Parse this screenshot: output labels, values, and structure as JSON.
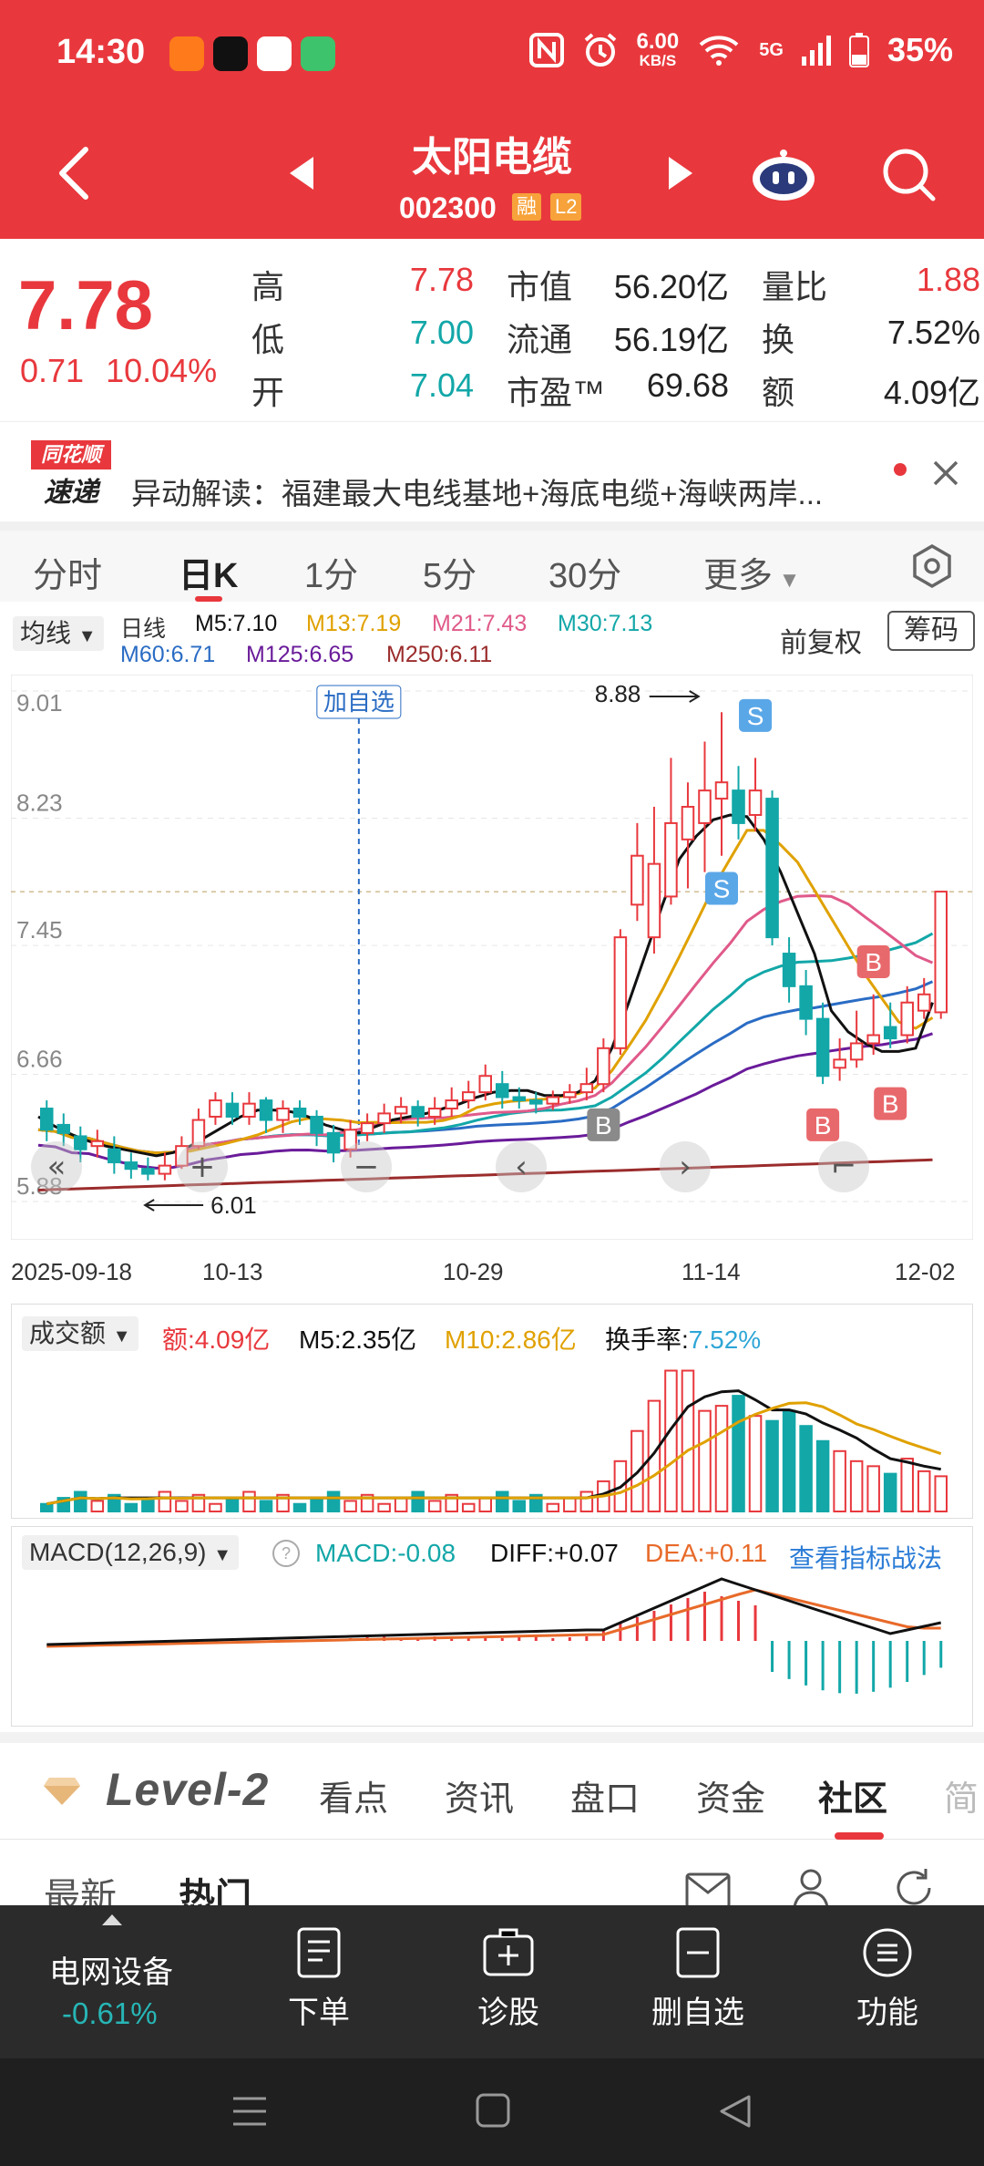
{
  "status_bar": {
    "time": "14:30",
    "net_speed_value": "6.00",
    "net_speed_unit": "KB/S",
    "signal": "5G",
    "battery": "35%"
  },
  "header": {
    "stock_name": "太阳电缆",
    "stock_code": "002300",
    "tag_margin": "融",
    "tag_level": "L2"
  },
  "quote": {
    "price": "7.78",
    "change": "0.71",
    "change_pct": "10.04%",
    "high_label": "高",
    "high": "7.78",
    "low_label": "低",
    "low": "7.00",
    "open_label": "开",
    "open": "7.04",
    "mktcap_label": "市值",
    "mktcap": "56.20亿",
    "float_label": "流通",
    "float": "56.19亿",
    "pe_label": "市盈™",
    "pe": "69.68",
    "vol_ratio_label": "量比",
    "vol_ratio": "1.88",
    "turnover_label": "换",
    "turnover": "7.52%",
    "amount_label": "额",
    "amount": "4.09亿"
  },
  "news": {
    "logo_top": "同花顺",
    "logo_bottom": "速递",
    "text": "异动解读：福建最大电线基地+海底电缆+海峡两岸..."
  },
  "period_tabs": [
    "分时",
    "日K",
    "1分",
    "5分",
    "30分",
    "更多"
  ],
  "active_period": "日K",
  "kline": {
    "indicator_select": "均线",
    "period_label": "日线",
    "ma5": "M5:7.10",
    "ma13": "M13:7.19",
    "ma21": "M21:7.43",
    "ma30": "M30:7.13",
    "ma60": "M60:6.71",
    "ma125": "M125:6.65",
    "ma250": "M250:6.11",
    "adjust": "前复权",
    "chip_button": "筹码",
    "add_watch": "加自选",
    "high_marker": "8.88",
    "low_marker": "6.01",
    "colors": {
      "ma5": "#111111",
      "ma13": "#e0a100",
      "ma21": "#e05a8a",
      "ma30": "#13a7a8",
      "ma60": "#2a6cc4",
      "ma125": "#6a1b9a",
      "ma250": "#9b2c2c",
      "up": "#e8383d",
      "down": "#13a7a8"
    }
  },
  "volume": {
    "indicator_select": "成交额",
    "amount": "额:4.09亿",
    "m5": "M5:2.35亿",
    "m10": "M10:2.86亿",
    "turnover_label": "换手率:",
    "turnover": "7.52%"
  },
  "macd": {
    "indicator_select": "MACD(12,26,9)",
    "macd": "MACD:-0.08",
    "diff": "DIFF:+0.07",
    "dea": "DEA:+0.11",
    "link": "查看指标战法"
  },
  "chart_data": {
    "type": "candlestick",
    "y_ticks": [
      "9.01",
      "8.23",
      "7.45",
      "6.66",
      "5.88"
    ],
    "ylim": [
      5.88,
      9.01
    ],
    "reference_price": 7.78,
    "x_ticks": [
      "2025-09-18",
      "10-13",
      "10-29",
      "11-14",
      "12-02"
    ],
    "markers": [
      {
        "label": "S",
        "type": "sell"
      },
      {
        "label": "S",
        "type": "sell"
      },
      {
        "label": "B",
        "type": "buy"
      },
      {
        "label": "B",
        "type": "buy"
      },
      {
        "label": "B",
        "type": "buy"
      },
      {
        "label": "B",
        "type": "buy"
      }
    ],
    "candles": [
      [
        6.45,
        6.32,
        6.5,
        6.25
      ],
      [
        6.35,
        6.3,
        6.42,
        6.22
      ],
      [
        6.28,
        6.2,
        6.34,
        6.12
      ],
      [
        6.22,
        6.25,
        6.32,
        6.15
      ],
      [
        6.2,
        6.12,
        6.28,
        6.05
      ],
      [
        6.12,
        6.08,
        6.18,
        6.02
      ],
      [
        6.08,
        6.05,
        6.15,
        6.01
      ],
      [
        6.05,
        6.1,
        6.18,
        6.01
      ],
      [
        6.1,
        6.22,
        6.28,
        6.08
      ],
      [
        6.22,
        6.38,
        6.45,
        6.2
      ],
      [
        6.4,
        6.5,
        6.55,
        6.35
      ],
      [
        6.48,
        6.4,
        6.55,
        6.35
      ],
      [
        6.4,
        6.48,
        6.55,
        6.35
      ],
      [
        6.5,
        6.38,
        6.52,
        6.3
      ],
      [
        6.38,
        6.45,
        6.5,
        6.3
      ],
      [
        6.45,
        6.4,
        6.5,
        6.35
      ],
      [
        6.4,
        6.3,
        6.44,
        6.22
      ],
      [
        6.3,
        6.18,
        6.35,
        6.12
      ],
      [
        6.2,
        6.32,
        6.38,
        6.15
      ],
      [
        6.3,
        6.36,
        6.42,
        6.25
      ],
      [
        6.36,
        6.42,
        6.48,
        6.3
      ],
      [
        6.42,
        6.46,
        6.52,
        6.36
      ],
      [
        6.46,
        6.4,
        6.5,
        6.34
      ],
      [
        6.4,
        6.45,
        6.52,
        6.35
      ],
      [
        6.45,
        6.5,
        6.58,
        6.4
      ],
      [
        6.5,
        6.55,
        6.62,
        6.45
      ],
      [
        6.55,
        6.65,
        6.72,
        6.5
      ],
      [
        6.6,
        6.52,
        6.68,
        6.45
      ],
      [
        6.52,
        6.5,
        6.58,
        6.45
      ],
      [
        6.5,
        6.48,
        6.55,
        6.42
      ],
      [
        6.48,
        6.52,
        6.56,
        6.44
      ],
      [
        6.52,
        6.55,
        6.6,
        6.48
      ],
      [
        6.55,
        6.6,
        6.7,
        6.5
      ],
      [
        6.6,
        6.82,
        6.88,
        6.55
      ],
      [
        6.82,
        7.5,
        7.55,
        6.78
      ],
      [
        7.7,
        8.0,
        8.2,
        7.6
      ],
      [
        7.5,
        7.95,
        8.3,
        7.4
      ],
      [
        7.75,
        8.2,
        8.6,
        7.7
      ],
      [
        8.1,
        8.3,
        8.45,
        7.8
      ],
      [
        8.2,
        8.4,
        8.7,
        7.9
      ],
      [
        8.35,
        8.45,
        8.88,
        8.0
      ],
      [
        8.4,
        8.2,
        8.55,
        8.1
      ],
      [
        8.25,
        8.4,
        8.6,
        8.15
      ],
      [
        8.35,
        7.5,
        8.4,
        7.45
      ],
      [
        7.4,
        7.2,
        7.5,
        7.1
      ],
      [
        7.2,
        7.0,
        7.3,
        6.9
      ],
      [
        7.0,
        6.65,
        7.1,
        6.6
      ],
      [
        6.7,
        6.75,
        6.88,
        6.62
      ],
      [
        6.75,
        6.85,
        7.05,
        6.7
      ],
      [
        6.85,
        6.9,
        7.15,
        6.78
      ],
      [
        6.95,
        6.88,
        7.1,
        6.82
      ],
      [
        6.9,
        7.1,
        7.2,
        6.85
      ],
      [
        7.05,
        7.15,
        7.25,
        7.0
      ],
      [
        7.04,
        7.78,
        7.78,
        7.0
      ]
    ],
    "ma_series": {
      "ma5": [
        6.4,
        6.34,
        6.29,
        6.25,
        6.22,
        6.2,
        6.18,
        6.16,
        6.18,
        6.22,
        6.28,
        6.34,
        6.4,
        6.44,
        6.44,
        6.43,
        6.4,
        6.35,
        6.32,
        6.3,
        6.34,
        6.38,
        6.4,
        6.42,
        6.45,
        6.48,
        6.52,
        6.55,
        6.56,
        6.56,
        6.53,
        6.53,
        6.55,
        6.62,
        6.82,
        7.1,
        7.4,
        7.7,
        7.98,
        8.12,
        8.22,
        8.25,
        8.24,
        8.1,
        7.9,
        7.65,
        7.4,
        7.05,
        6.92,
        6.85,
        6.8,
        6.8,
        6.82,
        7.1
      ]
    }
  }
}
